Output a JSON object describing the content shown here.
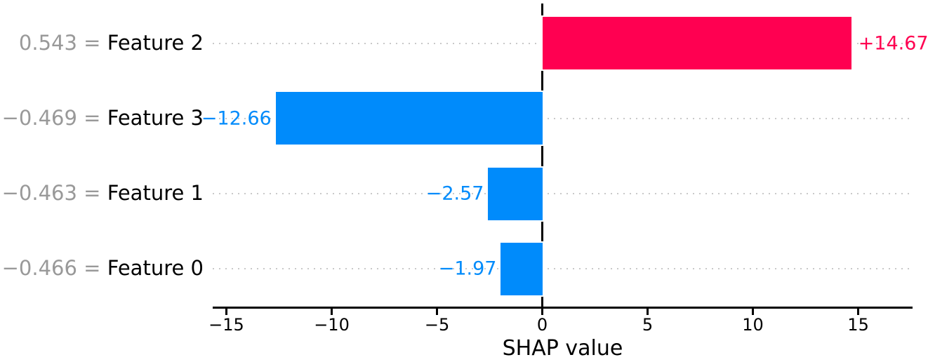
{
  "chart_data": {
    "type": "bar",
    "orientation": "horizontal",
    "title": "",
    "xlabel": "SHAP value",
    "ylabel": "",
    "xlim": [
      -15.65,
      17.58
    ],
    "grid": {
      "axis": "y",
      "style": "dotted",
      "color": "#c9c9c9"
    },
    "zero_line": true,
    "legend": "none",
    "x_ticks": [
      {
        "label": "−15",
        "value": -15
      },
      {
        "label": "−10",
        "value": -10
      },
      {
        "label": "−5",
        "value": -5
      },
      {
        "label": "0",
        "value": 0
      },
      {
        "label": "5",
        "value": 5
      },
      {
        "label": "10",
        "value": 10
      },
      {
        "label": "15",
        "value": 15
      }
    ],
    "rows": [
      {
        "value_label": "0.543 =",
        "name": "Feature 2",
        "shap": 14.67,
        "bar_label": "+14.67",
        "color": "#ff0051"
      },
      {
        "value_label": "−0.469 =",
        "name": "Feature 3",
        "shap": -12.66,
        "bar_label": "−12.66",
        "color": "#008bfb"
      },
      {
        "value_label": "−0.463 =",
        "name": "Feature 1",
        "shap": -2.57,
        "bar_label": "−2.57",
        "color": "#008bfb"
      },
      {
        "value_label": "−0.466 =",
        "name": "Feature 0",
        "shap": -1.97,
        "bar_label": "−1.97",
        "color": "#008bfb"
      }
    ],
    "colors": {
      "positive_bar": "#ff0051",
      "negative_bar": "#008bfb",
      "feature_value_text": "#999999",
      "feature_name_text": "#000000",
      "grid": "#c9c9c9",
      "axis": "#000000"
    }
  }
}
